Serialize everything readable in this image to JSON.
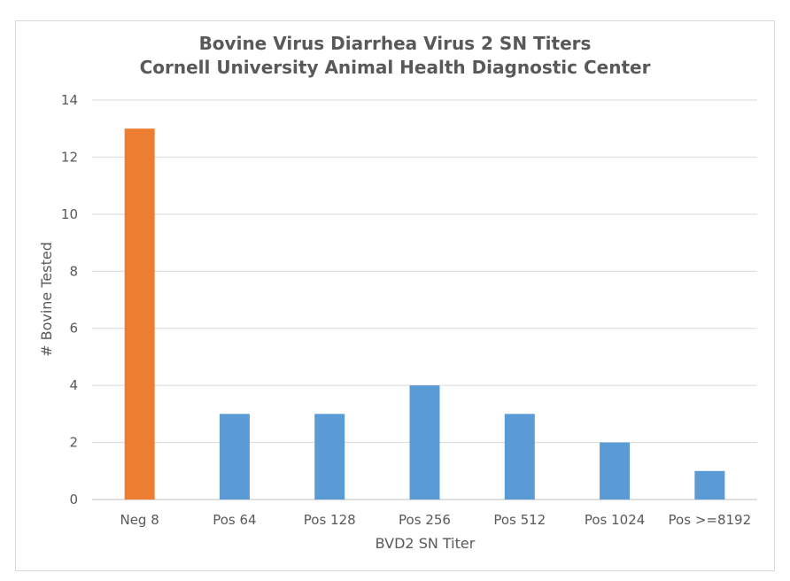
{
  "chart_data": {
    "type": "bar",
    "title": "Bovine Virus Diarrhea Virus 2 SN Titers",
    "subtitle": "Cornell University Animal Health Diagnostic Center",
    "xlabel": "BVD2 SN Titer",
    "ylabel": "# Bovine Tested",
    "categories": [
      "Neg 8",
      "Pos 64",
      "Pos 128",
      "Pos 256",
      "Pos 512",
      "Pos 1024",
      "Pos >=8192"
    ],
    "values": [
      13,
      3,
      3,
      4,
      3,
      2,
      1
    ],
    "bar_colors": [
      "#ed7d31",
      "#5b9bd5",
      "#5b9bd5",
      "#5b9bd5",
      "#5b9bd5",
      "#5b9bd5",
      "#5b9bd5"
    ],
    "ylim": [
      0,
      14
    ],
    "yticks": [
      0,
      2,
      4,
      6,
      8,
      10,
      12,
      14
    ],
    "grid": true,
    "legend": "none"
  }
}
